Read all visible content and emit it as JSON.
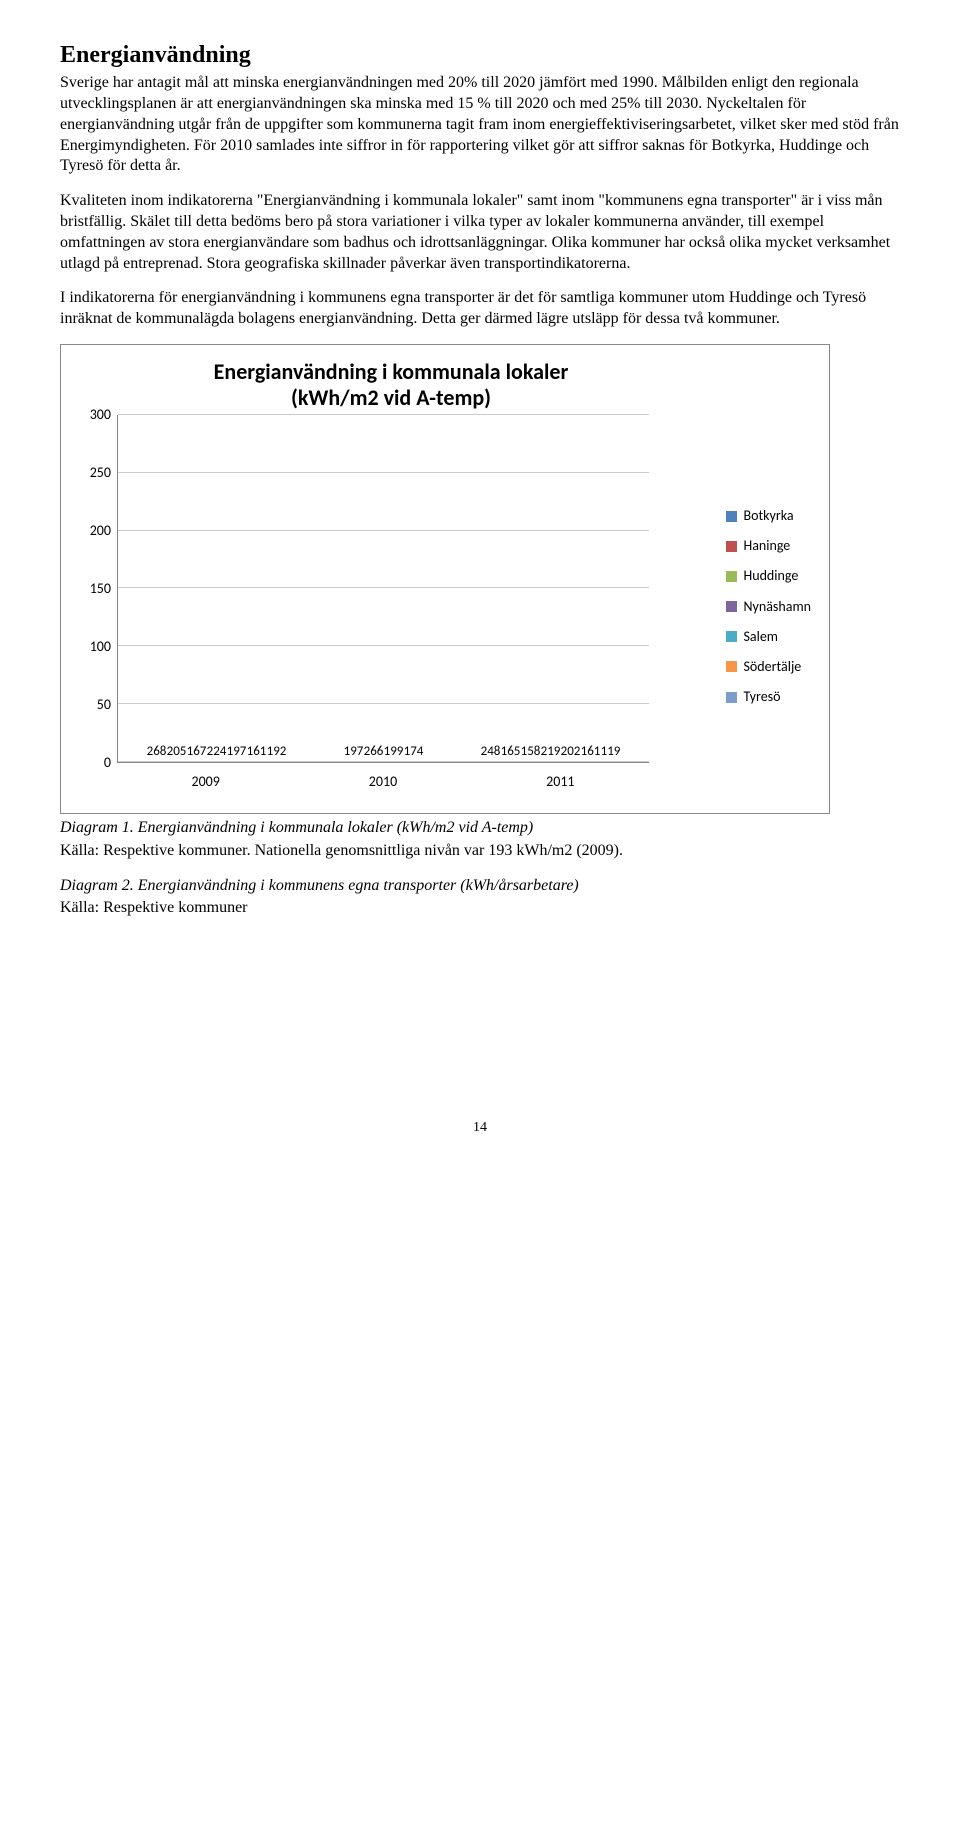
{
  "heading": "Energianvändning",
  "para1": "Sverige har antagit mål att minska energianvändningen med 20% till 2020 jämfört med 1990. Målbilden enligt den regionala utvecklingsplanen är att energianvändningen ska minska med 15 % till 2020 och med 25% till 2030. Nyckeltalen för energianvändning utgår från de uppgifter som kommunerna tagit fram inom energieffektiviseringsarbetet, vilket sker med stöd från Energimyndigheten. För 2010 samlades inte siffror in för rapportering vilket gör att siffror saknas för Botkyrka, Huddinge och Tyresö för detta år.",
  "para2": "Kvaliteten inom indikatorerna \"Energianvändning i kommunala lokaler\" samt inom \"kommunens egna transporter\" är i viss mån bristfällig. Skälet till detta bedöms bero på stora variationer i vilka typer av lokaler kommunerna använder, till exempel omfattningen av stora energianvändare som badhus och idrottsanläggningar. Olika kommuner har också olika mycket verksamhet utlagd på entreprenad. Stora geografiska skillnader påverkar även transportindikatorerna.",
  "para3": "I indikatorerna för energianvändning i kommunens egna transporter är det för samtliga kommuner utom Huddinge och Tyresö inräknat de kommunalägda bolagens energianvändning. Detta ger därmed lägre utsläpp för dessa två kommuner.",
  "chart": {
    "title_line1": "Energianvändning i kommunala lokaler",
    "title_line2": "(kWh/m2 vid A-temp)",
    "ymax": 300,
    "ytick_step": 50,
    "yticks": [
      0,
      50,
      100,
      150,
      200,
      250,
      300
    ],
    "categories": [
      "2009",
      "2010",
      "2011"
    ],
    "series": [
      {
        "name": "Botkyrka",
        "color": "#4f81bd"
      },
      {
        "name": "Haninge",
        "color": "#c0504d"
      },
      {
        "name": "Huddinge",
        "color": "#9bbb59"
      },
      {
        "name": "Nynäshamn",
        "color": "#8064a2"
      },
      {
        "name": "Salem",
        "color": "#4bacc6"
      },
      {
        "name": "Södertälje",
        "color": "#f79646"
      },
      {
        "name": "Tyresö",
        "color": "#7d9ecb"
      }
    ],
    "data": {
      "2009": [
        268,
        205,
        167,
        224,
        197,
        161,
        192
      ],
      "2010": [
        null,
        197,
        null,
        266,
        199,
        174,
        null
      ],
      "2011": [
        248,
        165,
        158,
        219,
        202,
        161,
        119
      ]
    }
  },
  "caption1": "Diagram 1. Energianvändning i kommunala lokaler (kWh/m2 vid A-temp)",
  "source1": "Källa: Respektive kommuner. Nationella genomsnittliga nivån var 193 kWh/m2 (2009).",
  "caption2": "Diagram 2. Energianvändning i kommunens egna transporter (kWh/årsarbetare)",
  "source2": "Källa: Respektive kommuner",
  "page_number": "14"
}
